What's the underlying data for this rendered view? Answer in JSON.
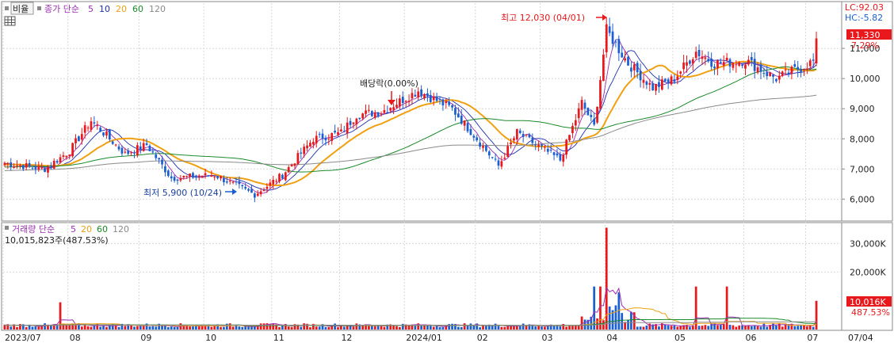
{
  "header": {
    "toggle_label": "비율",
    "price_title": "종가 단순",
    "ma_periods": [
      "5",
      "10",
      "20",
      "60",
      "120"
    ],
    "lc_label": "LC:92.03",
    "hc_label": "HC:-5.82"
  },
  "volume_header": {
    "title": "거래량 단순",
    "ma_periods": [
      "5",
      "20",
      "60",
      "120"
    ],
    "summary": "10,015,823주(487.53%)"
  },
  "annotations": {
    "high": "최고 12,030 (04/01)",
    "low": "최저 5,900 (10/24)",
    "dividend": "배당락(0.00%)"
  },
  "price_axis": {
    "ticks": [
      "11,000",
      "10,000",
      "9,000",
      "8,000",
      "7,000",
      "6,000"
    ],
    "current_price": "11,330",
    "current_change": "7.29%"
  },
  "volume_axis": {
    "ticks": [
      "30,000K",
      "20,000K"
    ],
    "current_volume": "10,016K",
    "current_ratio": "487.53%"
  },
  "x_axis": {
    "labels": [
      "2023/07",
      "08",
      "09",
      "10",
      "11",
      "12",
      "2024/01",
      "02",
      "03",
      "04",
      "05",
      "06",
      "07",
      "07/04"
    ]
  },
  "colors": {
    "up": "#e8181c",
    "down": "#1a5fd0",
    "ma5": "#9b2fb0",
    "ma10": "#1e2fb0",
    "ma20": "#f0a010",
    "ma60": "#1a8a2a",
    "ma120": "#8a8a8a"
  },
  "chart_data": {
    "type": "candlestick",
    "ylim_price": [
      5300,
      12500
    ],
    "ylim_volume": [
      0,
      37000
    ],
    "anchors": [
      {
        "date": "2023-07-03",
        "close": 7200
      },
      {
        "date": "2023-07-20",
        "close": 7000
      },
      {
        "date": "2023-08-01",
        "close": 7600
      },
      {
        "date": "2023-08-10",
        "close": 8600
      },
      {
        "date": "2023-08-25",
        "close": 7500
      },
      {
        "date": "2023-09-05",
        "close": 7800
      },
      {
        "date": "2023-09-15",
        "close": 6700
      },
      {
        "date": "2023-10-05",
        "close": 6800
      },
      {
        "date": "2023-10-24",
        "close": 6150
      },
      {
        "date": "2023-11-05",
        "close": 6800
      },
      {
        "date": "2023-11-20",
        "close": 8000
      },
      {
        "date": "2023-12-01",
        "close": 8200
      },
      {
        "date": "2023-12-08",
        "close": 8800
      },
      {
        "date": "2023-12-20",
        "close": 8900
      },
      {
        "date": "2024-01-05",
        "close": 9600
      },
      {
        "date": "2024-01-20",
        "close": 9000
      },
      {
        "date": "2024-02-01",
        "close": 8000
      },
      {
        "date": "2024-02-10",
        "close": 7100
      },
      {
        "date": "2024-02-20",
        "close": 8200
      },
      {
        "date": "2024-03-10",
        "close": 7300
      },
      {
        "date": "2024-03-20",
        "close": 9200
      },
      {
        "date": "2024-03-26",
        "close": 8400
      },
      {
        "date": "2024-04-01",
        "close": 11600
      },
      {
        "date": "2024-04-10",
        "close": 10500
      },
      {
        "date": "2024-04-20",
        "close": 9700
      },
      {
        "date": "2024-05-01",
        "close": 10000
      },
      {
        "date": "2024-05-10",
        "close": 10900
      },
      {
        "date": "2024-05-20",
        "close": 10500
      },
      {
        "date": "2024-06-01",
        "close": 10600
      },
      {
        "date": "2024-06-15",
        "close": 10000
      },
      {
        "date": "2024-07-03",
        "close": 10560
      },
      {
        "date": "2024-07-04",
        "close": 11330
      }
    ],
    "volume_spikes": [
      {
        "date": "2023-07-27",
        "value": 9500
      },
      {
        "date": "2024-03-26",
        "value": 15000
      },
      {
        "date": "2024-03-28",
        "value": 15000
      },
      {
        "date": "2024-04-01",
        "value": 35500
      },
      {
        "date": "2024-04-05",
        "value": 13000
      },
      {
        "date": "2024-05-10",
        "value": 15000
      },
      {
        "date": "2024-05-24",
        "value": 15000
      },
      {
        "date": "2024-07-04",
        "value": 10016
      }
    ],
    "extremes": {
      "high": 12030,
      "high_date": "2024-04-01",
      "low": 5900,
      "low_date": "2023-10-24"
    }
  }
}
